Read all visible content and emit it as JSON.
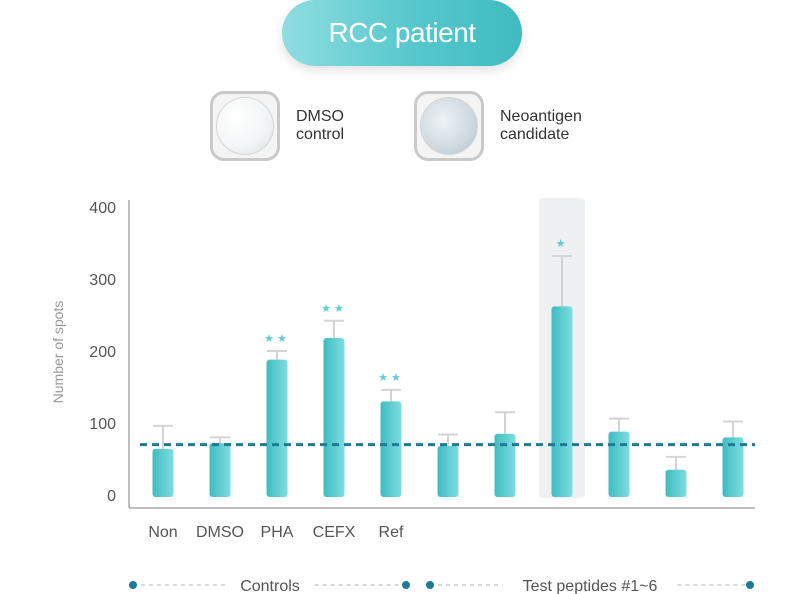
{
  "header": {
    "title": "RCC patient"
  },
  "legend": {
    "items": [
      {
        "label_line1": "DMSO",
        "label_line2": "control",
        "icon": "well-plate-clear-icon"
      },
      {
        "label_line1": "Neoantigen",
        "label_line2": "candidate",
        "icon": "well-plate-spotted-icon"
      }
    ]
  },
  "chart_data": {
    "type": "bar",
    "title": "",
    "xlabel": "",
    "ylabel": "Number of spots",
    "ylim": [
      0,
      400
    ],
    "yticks": [
      0,
      100,
      200,
      300,
      400
    ],
    "categories": [
      "Non",
      "DMSO",
      "PHA",
      "CEFX",
      "Ref",
      "",
      "",
      "",
      "",
      "",
      ""
    ],
    "values": [
      64,
      72,
      188,
      218,
      130,
      68,
      85,
      262,
      88,
      35,
      80
    ],
    "errors": [
      32,
      8,
      12,
      24,
      16,
      16,
      30,
      70,
      18,
      18,
      22
    ],
    "significance": [
      "",
      "",
      "**",
      "**",
      "**",
      "",
      "",
      "*",
      "",
      "",
      ""
    ],
    "highlighted_index": 7,
    "threshold": 70,
    "bar_color": "#4cc4c8",
    "significance_color": "#5ad0d4",
    "threshold_color": "#1f7a96",
    "groups": [
      {
        "label": "Controls",
        "from": 0,
        "to": 4
      },
      {
        "label": "Test peptides #1~6",
        "from": 5,
        "to": 10
      }
    ]
  }
}
